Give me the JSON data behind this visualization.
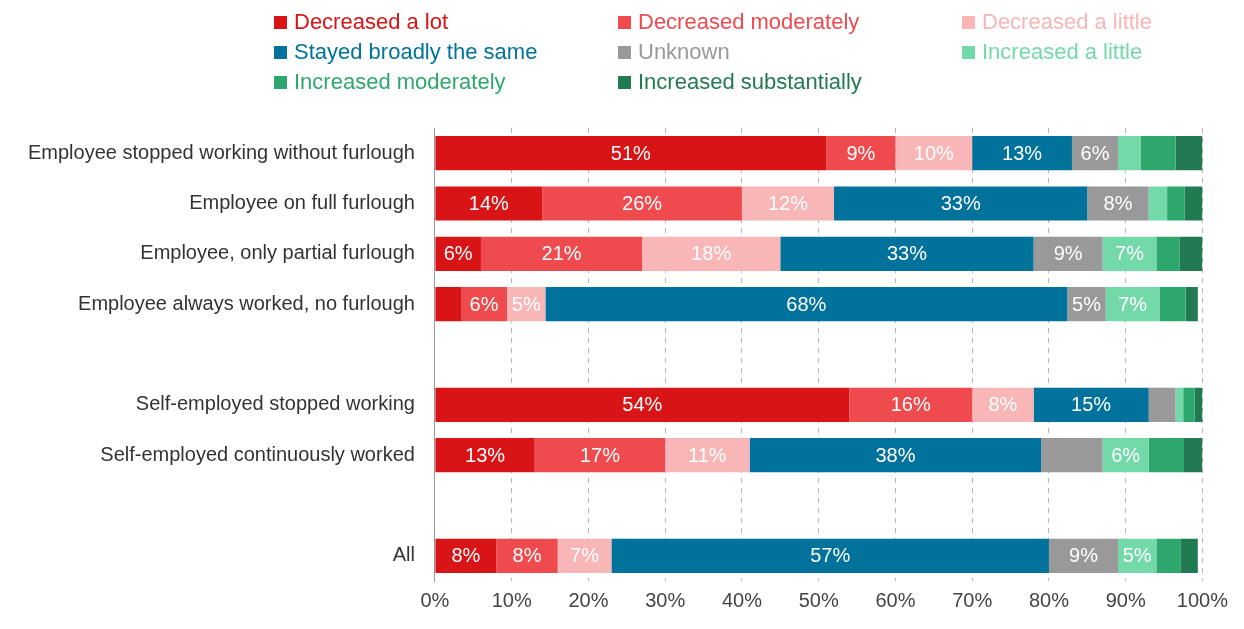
{
  "chart_data": {
    "type": "bar",
    "orientation": "horizontal",
    "stacked": true,
    "legend": "top",
    "grid": "x",
    "categories": [
      "Employee stopped working without furlough",
      "Employee on full furlough",
      "Employee, only partial furlough",
      "Employee always worked, no furlough",
      null,
      "Self-employed stopped working",
      "Self-employed continuously worked",
      null,
      "All"
    ],
    "xlim": [
      0,
      100
    ],
    "xticks": [
      {
        "value": 0,
        "label": "0%"
      },
      {
        "value": 10,
        "label": "10%"
      },
      {
        "value": 20,
        "label": "20%"
      },
      {
        "value": 30,
        "label": "30%"
      },
      {
        "value": 40,
        "label": "40%"
      },
      {
        "value": 50,
        "label": "50%"
      },
      {
        "value": 60,
        "label": "60%"
      },
      {
        "value": 70,
        "label": "70%"
      },
      {
        "value": 80,
        "label": "80%"
      },
      {
        "value": 90,
        "label": "90%"
      },
      {
        "value": 100,
        "label": "100%"
      }
    ],
    "series": [
      {
        "name": "Decreased a lot",
        "color": "#d91416",
        "values": [
          51,
          14,
          6,
          3.4,
          null,
          54,
          13,
          null,
          8
        ],
        "value_labels": [
          "51%",
          "14%",
          "6%",
          null,
          null,
          "54%",
          "13%",
          null,
          "8%"
        ]
      },
      {
        "name": "Decreased moderately",
        "color": "#ef4b4f",
        "values": [
          9,
          26,
          21,
          6,
          null,
          16,
          17,
          null,
          8
        ],
        "value_labels": [
          "9%",
          "26%",
          "21%",
          "6%",
          null,
          "16%",
          "17%",
          null,
          "8%"
        ]
      },
      {
        "name": "Decreased a little",
        "color": "#f8b6b6",
        "values": [
          10,
          12,
          18,
          5,
          null,
          8,
          11,
          null,
          7
        ],
        "value_labels": [
          "10%",
          "12%",
          "18%",
          "5%",
          null,
          "8%",
          "11%",
          null,
          "7%"
        ]
      },
      {
        "name": "Stayed broadly the same",
        "color": "#00729b",
        "values": [
          13,
          33,
          33,
          68,
          null,
          15,
          38,
          null,
          57
        ],
        "value_labels": [
          "13%",
          "33%",
          "33%",
          "68%",
          null,
          "15%",
          "38%",
          null,
          "57%"
        ]
      },
      {
        "name": "Unknown",
        "color": "#999999",
        "values": [
          6,
          8,
          9,
          5,
          null,
          3.5,
          8,
          null,
          9
        ],
        "value_labels": [
          "6%",
          "8%",
          "9%",
          "5%",
          null,
          null,
          null,
          null,
          "9%"
        ]
      },
      {
        "name": "Increased a little",
        "color": "#74d9a9",
        "values": [
          3,
          2.4,
          7,
          7,
          null,
          1,
          6,
          null,
          5
        ],
        "value_labels": [
          null,
          null,
          "7%",
          "7%",
          null,
          null,
          "6%",
          null,
          "5%"
        ]
      },
      {
        "name": "Increased moderately",
        "color": "#2ea76c",
        "values": [
          4.5,
          2.3,
          3,
          3.4,
          null,
          1.5,
          4.6,
          null,
          3.2
        ],
        "value_labels": [
          null,
          null,
          null,
          null,
          null,
          null,
          null,
          null,
          null
        ]
      },
      {
        "name": "Increased substantially",
        "color": "#217a51",
        "values": [
          3.5,
          2.3,
          3,
          1.6,
          null,
          1,
          2.4,
          null,
          2.2
        ],
        "value_labels": [
          null,
          null,
          null,
          null,
          null,
          null,
          null,
          null,
          null
        ]
      }
    ]
  }
}
